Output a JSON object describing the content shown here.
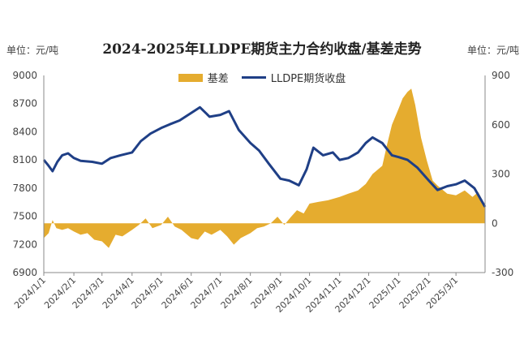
{
  "chart_data": {
    "type": "line",
    "title": "2024-2025年LLDPE期货主力合约收盘/基差走势",
    "unit_left": "单位：元/吨",
    "unit_right": "单位：元/吨",
    "legend": [
      {
        "name": "基差",
        "color": "#E5AC2F",
        "kind": "area"
      },
      {
        "name": "LLDPE期货收盘",
        "color": "#1F3F86",
        "kind": "line"
      }
    ],
    "y_left": {
      "min": 6900,
      "max": 9000,
      "ticks": [
        "9000",
        "8700",
        "8400",
        "8100",
        "7800",
        "7500",
        "7200",
        "6900"
      ]
    },
    "y_right": {
      "min": -300,
      "max": 900,
      "ticks": [
        "900",
        "600",
        "300",
        "0",
        "-300"
      ]
    },
    "x_ticks": [
      "2024/1/1",
      "2024/2/1",
      "2024/3/1",
      "2024/4/1",
      "2024/5/1",
      "2024/6/1",
      "2024/7/1",
      "2024/8/1",
      "2024/9/1",
      "2024/10/1",
      "2024/11/1",
      "2024/12/1",
      "2025/1/1",
      "2025/2/1",
      "2025/3/1"
    ],
    "x_range": [
      "2024/1/1",
      "2025/3/31"
    ],
    "series": [
      {
        "name": "LLDPE期货收盘",
        "axis": "left",
        "points": [
          [
            "2024/1/1",
            8100
          ],
          [
            "2024/1/5",
            8050
          ],
          [
            "2024/1/10",
            7980
          ],
          [
            "2024/1/15",
            8080
          ],
          [
            "2024/1/20",
            8150
          ],
          [
            "2024/1/26",
            8170
          ],
          [
            "2024/2/1",
            8120
          ],
          [
            "2024/2/8",
            8090
          ],
          [
            "2024/2/20",
            8080
          ],
          [
            "2024/3/1",
            8060
          ],
          [
            "2024/3/10",
            8120
          ],
          [
            "2024/3/20",
            8150
          ],
          [
            "2024/4/1",
            8180
          ],
          [
            "2024/4/10",
            8300
          ],
          [
            "2024/4/20",
            8380
          ],
          [
            "2024/5/1",
            8440
          ],
          [
            "2024/5/10",
            8480
          ],
          [
            "2024/5/20",
            8520
          ],
          [
            "2024/6/1",
            8600
          ],
          [
            "2024/6/10",
            8660
          ],
          [
            "2024/6/20",
            8560
          ],
          [
            "2024/7/1",
            8580
          ],
          [
            "2024/7/10",
            8620
          ],
          [
            "2024/7/20",
            8420
          ],
          [
            "2024/8/1",
            8280
          ],
          [
            "2024/8/10",
            8200
          ],
          [
            "2024/8/20",
            8060
          ],
          [
            "2024/9/1",
            7900
          ],
          [
            "2024/9/10",
            7880
          ],
          [
            "2024/9/20",
            7830
          ],
          [
            "2024/9/28",
            8000
          ],
          [
            "2024/10/5",
            8230
          ],
          [
            "2024/10/15",
            8150
          ],
          [
            "2024/10/25",
            8180
          ],
          [
            "2024/11/1",
            8100
          ],
          [
            "2024/11/10",
            8120
          ],
          [
            "2024/11/20",
            8180
          ],
          [
            "2024/11/28",
            8280
          ],
          [
            "2024/12/5",
            8340
          ],
          [
            "2024/12/15",
            8280
          ],
          [
            "2024/12/25",
            8150
          ],
          [
            "2025/1/1",
            8130
          ],
          [
            "2025/1/10",
            8100
          ],
          [
            "2025/1/20",
            8020
          ],
          [
            "2025/2/1",
            7880
          ],
          [
            "2025/2/10",
            7780
          ],
          [
            "2025/2/20",
            7820
          ],
          [
            "2025/3/1",
            7840
          ],
          [
            "2025/3/10",
            7880
          ],
          [
            "2025/3/20",
            7800
          ],
          [
            "2025/3/31",
            7600
          ]
        ]
      },
      {
        "name": "基差",
        "axis": "right",
        "points": [
          [
            "2024/1/1",
            -90
          ],
          [
            "2024/1/6",
            -60
          ],
          [
            "2024/1/10",
            20
          ],
          [
            "2024/1/14",
            -30
          ],
          [
            "2024/1/20",
            -40
          ],
          [
            "2024/1/26",
            -30
          ],
          [
            "2024/2/1",
            -50
          ],
          [
            "2024/2/8",
            -70
          ],
          [
            "2024/2/15",
            -60
          ],
          [
            "2024/2/22",
            -100
          ],
          [
            "2024/3/1",
            -110
          ],
          [
            "2024/3/8",
            -150
          ],
          [
            "2024/3/15",
            -70
          ],
          [
            "2024/3/22",
            -80
          ],
          [
            "2024/4/1",
            -40
          ],
          [
            "2024/4/8",
            -10
          ],
          [
            "2024/4/15",
            30
          ],
          [
            "2024/4/22",
            -30
          ],
          [
            "2024/5/1",
            -10
          ],
          [
            "2024/5/8",
            40
          ],
          [
            "2024/5/15",
            -20
          ],
          [
            "2024/5/22",
            -40
          ],
          [
            "2024/6/1",
            -90
          ],
          [
            "2024/6/8",
            -100
          ],
          [
            "2024/6/15",
            -50
          ],
          [
            "2024/6/22",
            -70
          ],
          [
            "2024/7/1",
            -40
          ],
          [
            "2024/7/8",
            -80
          ],
          [
            "2024/7/15",
            -130
          ],
          [
            "2024/7/22",
            -90
          ],
          [
            "2024/8/1",
            -60
          ],
          [
            "2024/8/8",
            -30
          ],
          [
            "2024/8/15",
            -20
          ],
          [
            "2024/8/22",
            0
          ],
          [
            "2024/8/29",
            40
          ],
          [
            "2024/9/5",
            -10
          ],
          [
            "2024/9/12",
            40
          ],
          [
            "2024/9/18",
            80
          ],
          [
            "2024/9/25",
            60
          ],
          [
            "2024/10/1",
            120
          ],
          [
            "2024/10/10",
            130
          ],
          [
            "2024/10/20",
            140
          ],
          [
            "2024/11/1",
            160
          ],
          [
            "2024/11/10",
            180
          ],
          [
            "2024/11/20",
            200
          ],
          [
            "2024/11/28",
            240
          ],
          [
            "2024/12/5",
            300
          ],
          [
            "2024/12/15",
            350
          ],
          [
            "2024/12/20",
            480
          ],
          [
            "2024/12/25",
            600
          ],
          [
            "2025/1/1",
            700
          ],
          [
            "2025/1/5",
            760
          ],
          [
            "2025/1/10",
            800
          ],
          [
            "2025/1/14",
            820
          ],
          [
            "2025/1/18",
            720
          ],
          [
            "2025/1/24",
            520
          ],
          [
            "2025/1/30",
            380
          ],
          [
            "2025/2/5",
            260
          ],
          [
            "2025/2/10",
            230
          ],
          [
            "2025/2/20",
            180
          ],
          [
            "2025/3/1",
            170
          ],
          [
            "2025/3/10",
            200
          ],
          [
            "2025/3/18",
            160
          ],
          [
            "2025/3/24",
            190
          ],
          [
            "2025/3/31",
            110
          ]
        ]
      }
    ],
    "grid": false
  }
}
